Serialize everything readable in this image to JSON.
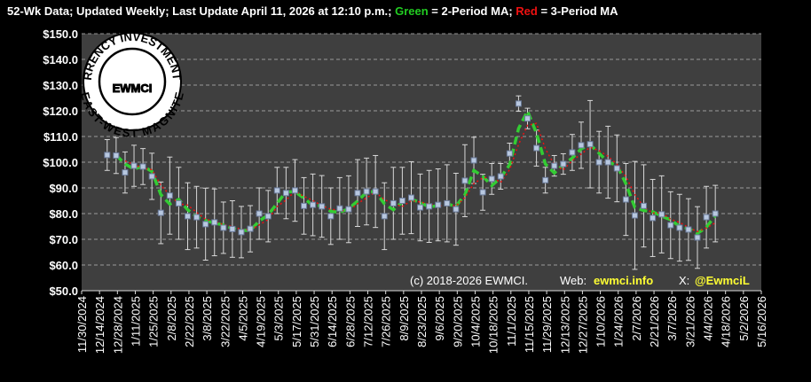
{
  "chart_data": {
    "type": "errorbar-line",
    "title": [
      {
        "text": "52-Wk Data; Updated Weekly; Last Update April 11, 2026 at 12:10 p.m.; ",
        "color": "#ffffff"
      },
      {
        "text": "Green",
        "color": "#22cc22"
      },
      {
        "text": " = 2-Period MA; ",
        "color": "#ffffff"
      },
      {
        "text": "Red",
        "color": "#ee1111"
      },
      {
        "text": " = 3-Period MA",
        "color": "#ffffff"
      }
    ],
    "footer": [
      {
        "text": "(c) 2018-2026 EWMCI.",
        "color": "#ffffff"
      },
      {
        "text": "Web:",
        "color": "#ffffff"
      },
      {
        "text": "ewmci.info",
        "color": "#ffff33"
      },
      {
        "text": "X:",
        "color": "#ffffff"
      },
      {
        "text": "@EwmciL",
        "color": "#ffff33"
      }
    ],
    "logo": {
      "center": "EWMCI",
      "ring_top": "CRYPTOCURRENCY INVESTMENTS EST. 2018",
      "ring_bottom": "EAST-WEST MAGNITE"
    },
    "x": [
      "12/20/2024",
      "12/27/2024",
      "1/3/2025",
      "1/10/2025",
      "1/17/2025",
      "1/24/2025",
      "1/31/2025",
      "2/7/2025",
      "2/14/2025",
      "2/21/2025",
      "2/28/2025",
      "3/7/2025",
      "3/14/2025",
      "3/21/2025",
      "3/28/2025",
      "4/4/2025",
      "4/11/2025",
      "4/18/2025",
      "4/25/2025",
      "5/2/2025",
      "5/9/2025",
      "5/16/2025",
      "5/23/2025",
      "5/30/2025",
      "6/6/2025",
      "6/13/2025",
      "6/20/2025",
      "6/27/2025",
      "7/4/2025",
      "7/11/2025",
      "7/18/2025",
      "7/25/2025",
      "8/1/2025",
      "8/8/2025",
      "8/15/2025",
      "8/22/2025",
      "8/29/2025",
      "9/5/2025",
      "9/12/2025",
      "9/19/2025",
      "9/26/2025",
      "10/3/2025",
      "10/10/2025",
      "10/17/2025",
      "10/24/2025",
      "10/31/2025",
      "11/7/2025",
      "11/14/2025",
      "11/21/2025",
      "11/28/2025",
      "12/5/2025",
      "12/12/2025",
      "12/19/2025",
      "12/26/2025",
      "1/2/2026",
      "1/9/2026",
      "1/16/2026",
      "1/23/2026",
      "1/30/2026",
      "2/6/2026",
      "2/13/2026",
      "2/20/2026",
      "2/27/2026",
      "3/6/2026",
      "3/13/2026",
      "3/20/2026",
      "3/27/2026",
      "4/3/2026",
      "4/10/2026"
    ],
    "values": [
      102.8,
      102.6,
      96.0,
      98.6,
      98.3,
      94.5,
      80.3,
      87.0,
      84.0,
      79.0,
      78.6,
      75.9,
      76.6,
      74.5,
      74.0,
      72.8,
      74.1,
      80.0,
      79.0,
      89.0,
      88.0,
      89.0,
      83.0,
      83.4,
      82.8,
      79.0,
      82.0,
      81.7,
      88.0,
      88.6,
      88.6,
      79.0,
      84.0,
      85.0,
      86.2,
      82.4,
      82.8,
      83.4,
      84.0,
      81.7,
      92.8,
      100.7,
      88.3,
      93.5,
      94.5,
      103.4,
      122.8,
      117.0,
      105.5,
      93.0,
      98.6,
      99.3,
      103.8,
      106.6,
      107.0,
      100.0,
      100.0,
      97.6,
      85.5,
      79.3,
      83.0,
      78.3,
      79.7,
      75.5,
      74.5,
      73.8,
      70.7,
      78.6,
      80.0
    ],
    "errors": [
      6,
      7,
      8,
      8,
      7,
      9,
      12,
      15,
      14,
      13,
      12,
      14,
      13,
      10,
      11,
      10,
      9,
      10,
      10,
      9,
      10,
      12,
      11,
      12,
      12,
      11,
      12,
      13,
      13,
      13,
      14,
      13,
      14,
      13,
      14,
      13,
      14,
      14,
      15,
      14,
      14,
      9,
      7,
      6,
      5,
      4,
      3,
      4,
      7,
      5,
      4,
      4,
      7,
      9,
      17,
      12,
      14,
      13,
      14,
      21,
      16,
      15,
      15,
      13,
      13,
      12,
      12,
      12,
      11
    ],
    "marker_color": "#b8c8e0",
    "error_color": "#d8d8d8",
    "ma2": {
      "color": "#33cc33",
      "values": [
        null,
        102.7,
        99.3,
        97.3,
        98.5,
        96.4,
        87.4,
        83.7,
        85.5,
        81.5,
        78.8,
        77.3,
        76.3,
        75.6,
        74.3,
        73.4,
        73.5,
        77.1,
        79.5,
        84.0,
        88.5,
        88.5,
        86.0,
        83.2,
        83.1,
        80.9,
        80.5,
        81.9,
        84.9,
        88.3,
        88.6,
        83.8,
        81.5,
        84.5,
        85.6,
        84.3,
        82.6,
        83.1,
        83.7,
        82.9,
        87.3,
        96.8,
        94.5,
        90.9,
        94.0,
        99.0,
        113.1,
        119.9,
        111.3,
        99.3,
        95.8,
        99.0,
        101.6,
        105.2,
        106.8,
        103.5,
        100.0,
        98.8,
        91.6,
        82.4,
        81.2,
        80.7,
        79.0,
        77.6,
        75.0,
        74.2,
        72.3,
        74.7,
        79.3
      ]
    },
    "ma3": {
      "color": "#ee1111",
      "values": [
        null,
        null,
        100.5,
        99.1,
        97.6,
        97.1,
        91.0,
        87.3,
        83.8,
        83.3,
        80.5,
        77.8,
        77.0,
        75.7,
        75.0,
        73.8,
        73.6,
        75.6,
        77.7,
        82.7,
        85.3,
        88.7,
        86.7,
        85.1,
        83.1,
        81.7,
        81.3,
        80.9,
        83.9,
        86.1,
        88.4,
        85.4,
        83.9,
        82.7,
        85.1,
        84.5,
        83.8,
        82.9,
        83.4,
        83.0,
        86.2,
        91.7,
        93.9,
        94.2,
        92.1,
        97.1,
        106.9,
        114.4,
        115.1,
        105.2,
        99.0,
        97.0,
        100.6,
        103.2,
        105.8,
        104.5,
        102.3,
        99.2,
        94.4,
        87.5,
        82.6,
        80.2,
        80.3,
        77.8,
        76.6,
        74.6,
        73.0,
        74.4,
        76.4
      ]
    },
    "xlim": [
      "11/30/2024",
      "5/16/2026"
    ],
    "xticks": [
      "11/30/2024",
      "12/14/2024",
      "12/28/2024",
      "1/11/2025",
      "1/25/2025",
      "2/8/2025",
      "2/22/2025",
      "3/8/2025",
      "3/22/2025",
      "4/5/2025",
      "4/19/2025",
      "5/3/2025",
      "5/17/2025",
      "5/31/2025",
      "6/14/2025",
      "6/28/2025",
      "7/12/2025",
      "7/26/2025",
      "8/9/2025",
      "8/23/2025",
      "9/6/2025",
      "9/20/2025",
      "10/4/2025",
      "10/18/2025",
      "11/1/2025",
      "11/15/2025",
      "11/29/2025",
      "12/13/2025",
      "12/27/2025",
      "1/10/2026",
      "1/24/2026",
      "2/7/2026",
      "2/21/2026",
      "3/7/2026",
      "3/21/2026",
      "4/4/2026",
      "4/18/2026",
      "5/2/2026",
      "5/16/2026"
    ],
    "ylim": [
      50,
      150
    ],
    "yticks": [
      {
        "value": 50,
        "label": "$50.0"
      },
      {
        "value": 60,
        "label": "$60.0"
      },
      {
        "value": 70,
        "label": "$70.0"
      },
      {
        "value": 80,
        "label": "$80.0"
      },
      {
        "value": 90,
        "label": "$90.0"
      },
      {
        "value": 100,
        "label": "$100.0"
      },
      {
        "value": 110,
        "label": "$110.0"
      },
      {
        "value": 120,
        "label": "$120.0"
      },
      {
        "value": 130,
        "label": "$130.0"
      },
      {
        "value": 140,
        "label": "$140.0"
      },
      {
        "value": 150,
        "label": "$150.0"
      }
    ],
    "grid": true
  }
}
